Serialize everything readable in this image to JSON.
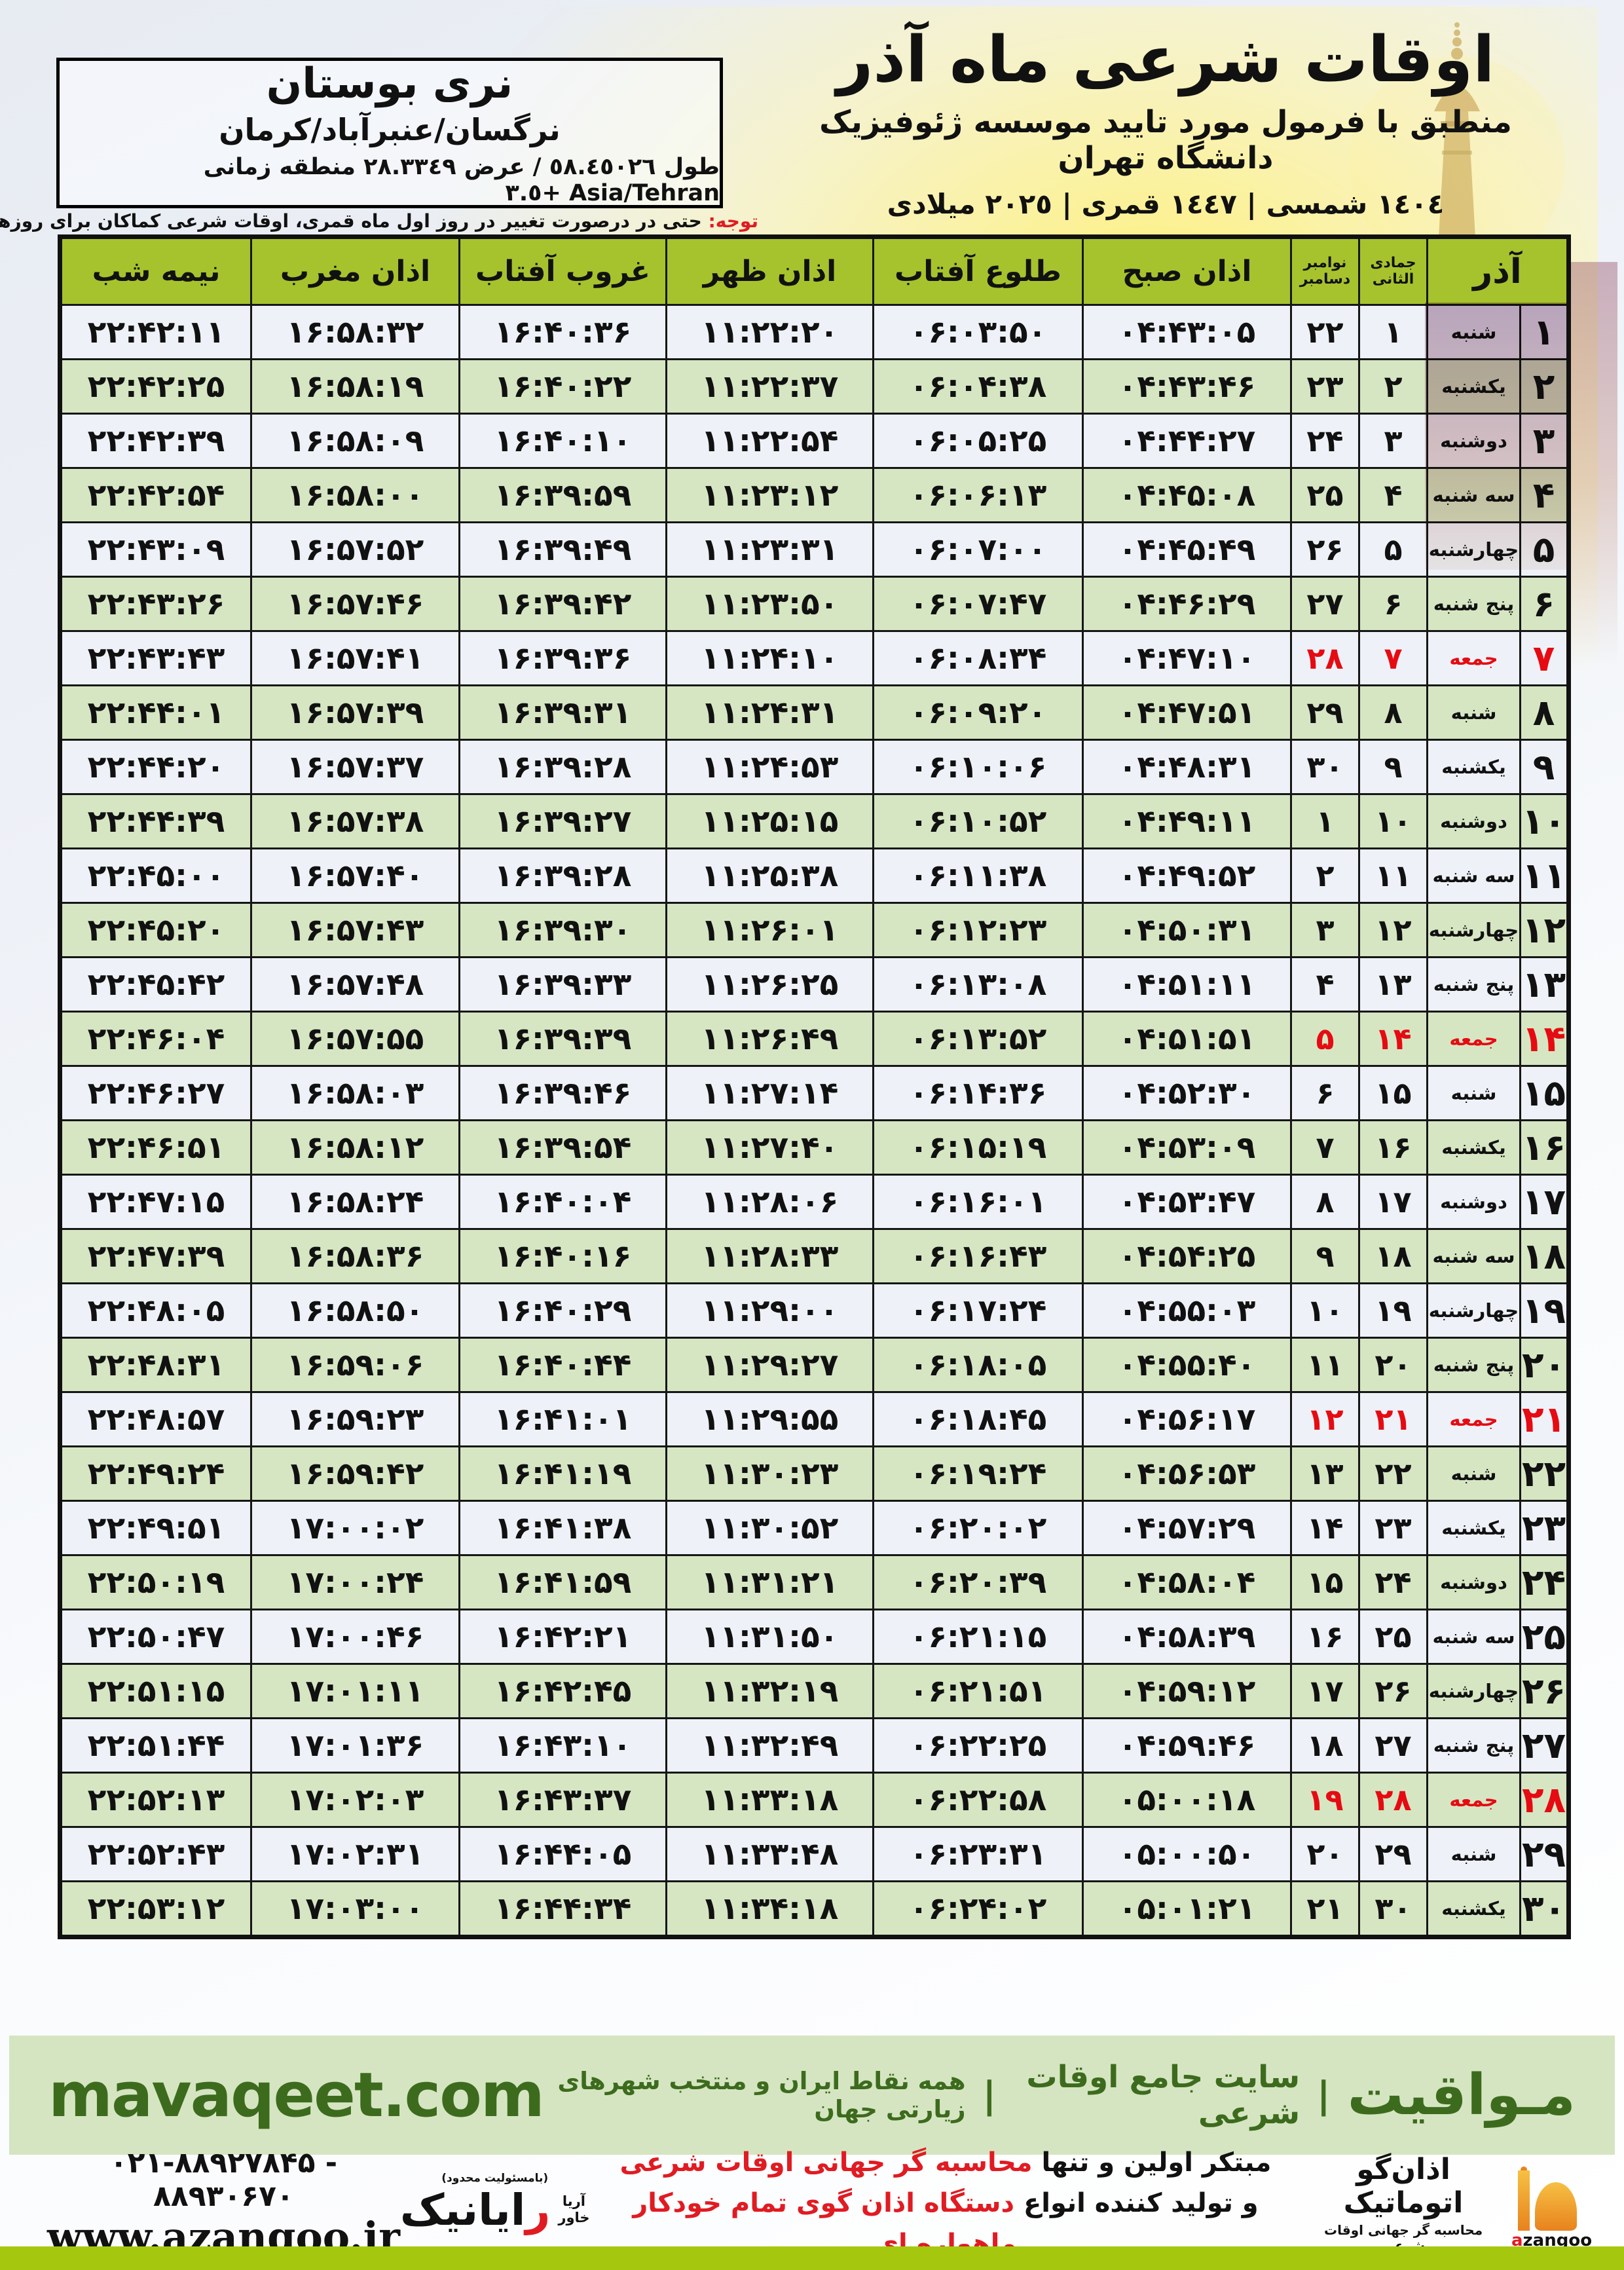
{
  "colors": {
    "accent_red": "#e11b22",
    "header_green": "#a6c32d",
    "row_green": "#d6e6c3",
    "row_light": "#eef2f8",
    "footer_bg": "#d5e5c1",
    "footer_text": "#3d6b1e",
    "bottom_bar": "#a5c80e"
  },
  "header": {
    "title": "اوقات شرعی ماه آذر",
    "subtitle": "منطبق با فرمول مورد تایید موسسه ژئوفیزیک دانشگاه تهران",
    "year_line": "١٤٠٤ شمسی | ١٤٤٧ قمری | ٢٠٢٥ میلادی",
    "location_name": "نری بوستان",
    "location_region": "نرگسان/عنبرآباد/کرمان",
    "location_coords": "طول ٥٨.٤٥٠٢٦ / عرض ٢٨.٣٣٤٩ منطقه زمانی Asia/Tehran +٣.٥",
    "notice_label": "توجه:",
    "notice_text": "حتی در درصورت تغییر در روز اول ماه قمری، اوقات شرعی کماکان برای روزهای شمسی و میلادی معتبر است."
  },
  "table": {
    "month_label": "آذر",
    "hijri_label": "جمادی الثانی",
    "greg_label_top": "نوامبر",
    "greg_label_bottom": "دسامبر",
    "col_sobh": "اذان صبح",
    "col_tolu": "طلوع آفتاب",
    "col_zohr": "اذان ظهر",
    "col_ghorub": "غروب آفتاب",
    "col_maghreb": "اذان مغرب",
    "col_nimeshab": "نیمه شب",
    "rows": [
      {
        "d": 1,
        "wd": "شنبه",
        "hj": 1,
        "gr": 22,
        "fri": false,
        "t": [
          "04:43:05",
          "06:03:50",
          "11:22:20",
          "16:40:36",
          "16:58:32",
          "22:42:11"
        ]
      },
      {
        "d": 2,
        "wd": "یکشنبه",
        "hj": 2,
        "gr": 23,
        "fri": false,
        "t": [
          "04:43:46",
          "06:04:38",
          "11:22:37",
          "16:40:22",
          "16:58:19",
          "22:42:25"
        ]
      },
      {
        "d": 3,
        "wd": "دوشنبه",
        "hj": 3,
        "gr": 24,
        "fri": false,
        "t": [
          "04:44:27",
          "06:05:25",
          "11:22:54",
          "16:40:10",
          "16:58:09",
          "22:42:39"
        ]
      },
      {
        "d": 4,
        "wd": "سه شنبه",
        "hj": 4,
        "gr": 25,
        "fri": false,
        "t": [
          "04:45:08",
          "06:06:13",
          "11:23:12",
          "16:39:59",
          "16:58:00",
          "22:42:54"
        ]
      },
      {
        "d": 5,
        "wd": "چهارشنبه",
        "hj": 5,
        "gr": 26,
        "fri": false,
        "t": [
          "04:45:49",
          "06:07:00",
          "11:23:31",
          "16:39:49",
          "16:57:52",
          "22:43:09"
        ]
      },
      {
        "d": 6,
        "wd": "پنج شنبه",
        "hj": 6,
        "gr": 27,
        "fri": false,
        "t": [
          "04:46:29",
          "06:07:47",
          "11:23:50",
          "16:39:42",
          "16:57:46",
          "22:43:26"
        ]
      },
      {
        "d": 7,
        "wd": "جمعه",
        "hj": 7,
        "gr": 28,
        "fri": true,
        "t": [
          "04:47:10",
          "06:08:34",
          "11:24:10",
          "16:39:36",
          "16:57:41",
          "22:43:43"
        ]
      },
      {
        "d": 8,
        "wd": "شنبه",
        "hj": 8,
        "gr": 29,
        "fri": false,
        "t": [
          "04:47:51",
          "06:09:20",
          "11:24:31",
          "16:39:31",
          "16:57:39",
          "22:44:01"
        ]
      },
      {
        "d": 9,
        "wd": "یکشنبه",
        "hj": 9,
        "gr": 30,
        "fri": false,
        "t": [
          "04:48:31",
          "06:10:06",
          "11:24:53",
          "16:39:28",
          "16:57:37",
          "22:44:20"
        ]
      },
      {
        "d": 10,
        "wd": "دوشنبه",
        "hj": 10,
        "gr": 1,
        "fri": false,
        "t": [
          "04:49:11",
          "06:10:52",
          "11:25:15",
          "16:39:27",
          "16:57:38",
          "22:44:39"
        ]
      },
      {
        "d": 11,
        "wd": "سه شنبه",
        "hj": 11,
        "gr": 2,
        "fri": false,
        "t": [
          "04:49:52",
          "06:11:38",
          "11:25:38",
          "16:39:28",
          "16:57:40",
          "22:45:00"
        ]
      },
      {
        "d": 12,
        "wd": "چهارشنبه",
        "hj": 12,
        "gr": 3,
        "fri": false,
        "t": [
          "04:50:31",
          "06:12:23",
          "11:26:01",
          "16:39:30",
          "16:57:43",
          "22:45:20"
        ]
      },
      {
        "d": 13,
        "wd": "پنج شنبه",
        "hj": 13,
        "gr": 4,
        "fri": false,
        "t": [
          "04:51:11",
          "06:13:08",
          "11:26:25",
          "16:39:33",
          "16:57:48",
          "22:45:42"
        ]
      },
      {
        "d": 14,
        "wd": "جمعه",
        "hj": 14,
        "gr": 5,
        "fri": true,
        "t": [
          "04:51:51",
          "06:13:52",
          "11:26:49",
          "16:39:39",
          "16:57:55",
          "22:46:04"
        ]
      },
      {
        "d": 15,
        "wd": "شنبه",
        "hj": 15,
        "gr": 6,
        "fri": false,
        "t": [
          "04:52:30",
          "06:14:36",
          "11:27:14",
          "16:39:46",
          "16:58:03",
          "22:46:27"
        ]
      },
      {
        "d": 16,
        "wd": "یکشنبه",
        "hj": 16,
        "gr": 7,
        "fri": false,
        "t": [
          "04:53:09",
          "06:15:19",
          "11:27:40",
          "16:39:54",
          "16:58:12",
          "22:46:51"
        ]
      },
      {
        "d": 17,
        "wd": "دوشنبه",
        "hj": 17,
        "gr": 8,
        "fri": false,
        "t": [
          "04:53:47",
          "06:16:01",
          "11:28:06",
          "16:40:04",
          "16:58:24",
          "22:47:15"
        ]
      },
      {
        "d": 18,
        "wd": "سه شنبه",
        "hj": 18,
        "gr": 9,
        "fri": false,
        "t": [
          "04:54:25",
          "06:16:43",
          "11:28:33",
          "16:40:16",
          "16:58:36",
          "22:47:39"
        ]
      },
      {
        "d": 19,
        "wd": "چهارشنبه",
        "hj": 19,
        "gr": 10,
        "fri": false,
        "t": [
          "04:55:03",
          "06:17:24",
          "11:29:00",
          "16:40:29",
          "16:58:50",
          "22:48:05"
        ]
      },
      {
        "d": 20,
        "wd": "پنج شنبه",
        "hj": 20,
        "gr": 11,
        "fri": false,
        "t": [
          "04:55:40",
          "06:18:05",
          "11:29:27",
          "16:40:44",
          "16:59:06",
          "22:48:31"
        ]
      },
      {
        "d": 21,
        "wd": "جمعه",
        "hj": 21,
        "gr": 12,
        "fri": true,
        "t": [
          "04:56:17",
          "06:18:45",
          "11:29:55",
          "16:41:01",
          "16:59:23",
          "22:48:57"
        ]
      },
      {
        "d": 22,
        "wd": "شنبه",
        "hj": 22,
        "gr": 13,
        "fri": false,
        "t": [
          "04:56:53",
          "06:19:24",
          "11:30:23",
          "16:41:19",
          "16:59:42",
          "22:49:24"
        ]
      },
      {
        "d": 23,
        "wd": "یکشنبه",
        "hj": 23,
        "gr": 14,
        "fri": false,
        "t": [
          "04:57:29",
          "06:20:02",
          "11:30:52",
          "16:41:38",
          "17:00:02",
          "22:49:51"
        ]
      },
      {
        "d": 24,
        "wd": "دوشنبه",
        "hj": 24,
        "gr": 15,
        "fri": false,
        "t": [
          "04:58:04",
          "06:20:39",
          "11:31:21",
          "16:41:59",
          "17:00:24",
          "22:50:19"
        ]
      },
      {
        "d": 25,
        "wd": "سه شنبه",
        "hj": 25,
        "gr": 16,
        "fri": false,
        "t": [
          "04:58:39",
          "06:21:15",
          "11:31:50",
          "16:42:21",
          "17:00:46",
          "22:50:47"
        ]
      },
      {
        "d": 26,
        "wd": "چهارشنبه",
        "hj": 26,
        "gr": 17,
        "fri": false,
        "t": [
          "04:59:12",
          "06:21:51",
          "11:32:19",
          "16:42:45",
          "17:01:11",
          "22:51:15"
        ]
      },
      {
        "d": 27,
        "wd": "پنج شنبه",
        "hj": 27,
        "gr": 18,
        "fri": false,
        "t": [
          "04:59:46",
          "06:22:25",
          "11:32:49",
          "16:43:10",
          "17:01:36",
          "22:51:44"
        ]
      },
      {
        "d": 28,
        "wd": "جمعه",
        "hj": 28,
        "gr": 19,
        "fri": true,
        "t": [
          "05:00:18",
          "06:22:58",
          "11:33:18",
          "16:43:37",
          "17:02:03",
          "22:52:13"
        ]
      },
      {
        "d": 29,
        "wd": "شنبه",
        "hj": 29,
        "gr": 20,
        "fri": false,
        "t": [
          "05:00:50",
          "06:23:31",
          "11:33:48",
          "16:44:05",
          "17:02:31",
          "22:52:43"
        ]
      },
      {
        "d": 30,
        "wd": "یکشنبه",
        "hj": 30,
        "gr": 21,
        "fri": false,
        "t": [
          "05:01:21",
          "06:24:02",
          "11:34:18",
          "16:44:34",
          "17:03:00",
          "22:53:12"
        ]
      }
    ]
  },
  "footer": {
    "brand": "مـواقیت",
    "sep": "|",
    "tagline1": "سایت جامع اوقات شرعی",
    "tagline2": "همه نقاط ایران و منتخب شهرهای زیارتی جهان",
    "site": "mavaqeet.com",
    "phone": "۰۲۱-۸۸۹۲۷۸۴۵ - ۸۸۹۳۰۶۷۰",
    "url": "www.azangoo.ir",
    "line1_black": "مبتکر اولین و تنها",
    "line1_red": "محاسبه گر جهانی اوقات شرعی",
    "line2_black": "و تولید کننده انواع",
    "line2_red": "دستگاه اذان گوی تمام خودکار ماهواره ای",
    "rayanik_small": "(بامسئولیت محدود)",
    "rayanik_initial": "ر",
    "rayanik_rest": "ایانیک",
    "rayanik_side1": "آریا",
    "rayanik_side2": "خاور",
    "azangoo_title": "اذان‌گو اتوماتیک",
    "azangoo_sub": "محاسبه گر جهانی اوقات شرعی",
    "azangoo_latin_a": "a",
    "azangoo_latin_rest": "zangoo"
  }
}
